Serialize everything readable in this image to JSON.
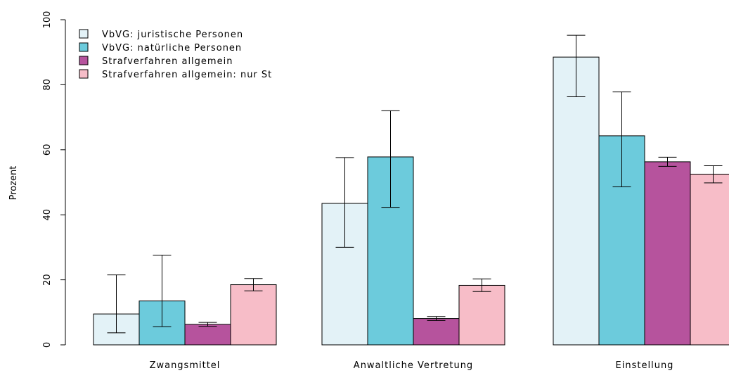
{
  "chart_data": {
    "type": "bar",
    "title": "",
    "xlabel": "",
    "ylabel": "Prozent",
    "ylim": [
      0,
      100
    ],
    "yticks": [
      0,
      20,
      40,
      60,
      80,
      100
    ],
    "grid": false,
    "legend_position": "top-left",
    "categories": [
      "Zwangsmittel",
      "Anwaltliche Vertretung",
      "Einstellung"
    ],
    "series": [
      {
        "name": "VbVG: juristische Personen",
        "color": "#e3f2f7",
        "values": [
          9.5,
          43.5,
          88.5
        ],
        "error_low": [
          3.7,
          30.0,
          76.3
        ],
        "error_high": [
          21.5,
          57.6,
          95.2
        ]
      },
      {
        "name": "VbVG: natürliche Personen",
        "color": "#6ccbdc",
        "values": [
          13.5,
          57.8,
          64.3
        ],
        "error_low": [
          5.6,
          42.3,
          48.6
        ],
        "error_high": [
          27.6,
          72.0,
          77.8
        ]
      },
      {
        "name": "Strafverfahren allgemein",
        "color": "#b6539d",
        "values": [
          6.3,
          8.1,
          56.3
        ],
        "error_low": [
          5.7,
          7.5,
          54.9
        ],
        "error_high": [
          6.9,
          8.7,
          57.7
        ]
      },
      {
        "name": "Strafverfahren allgemein: nur St",
        "color": "#f7bdc8",
        "values": [
          18.5,
          18.3,
          52.5
        ],
        "error_low": [
          16.6,
          16.4,
          49.8
        ],
        "error_high": [
          20.4,
          20.3,
          55.1
        ]
      }
    ]
  }
}
